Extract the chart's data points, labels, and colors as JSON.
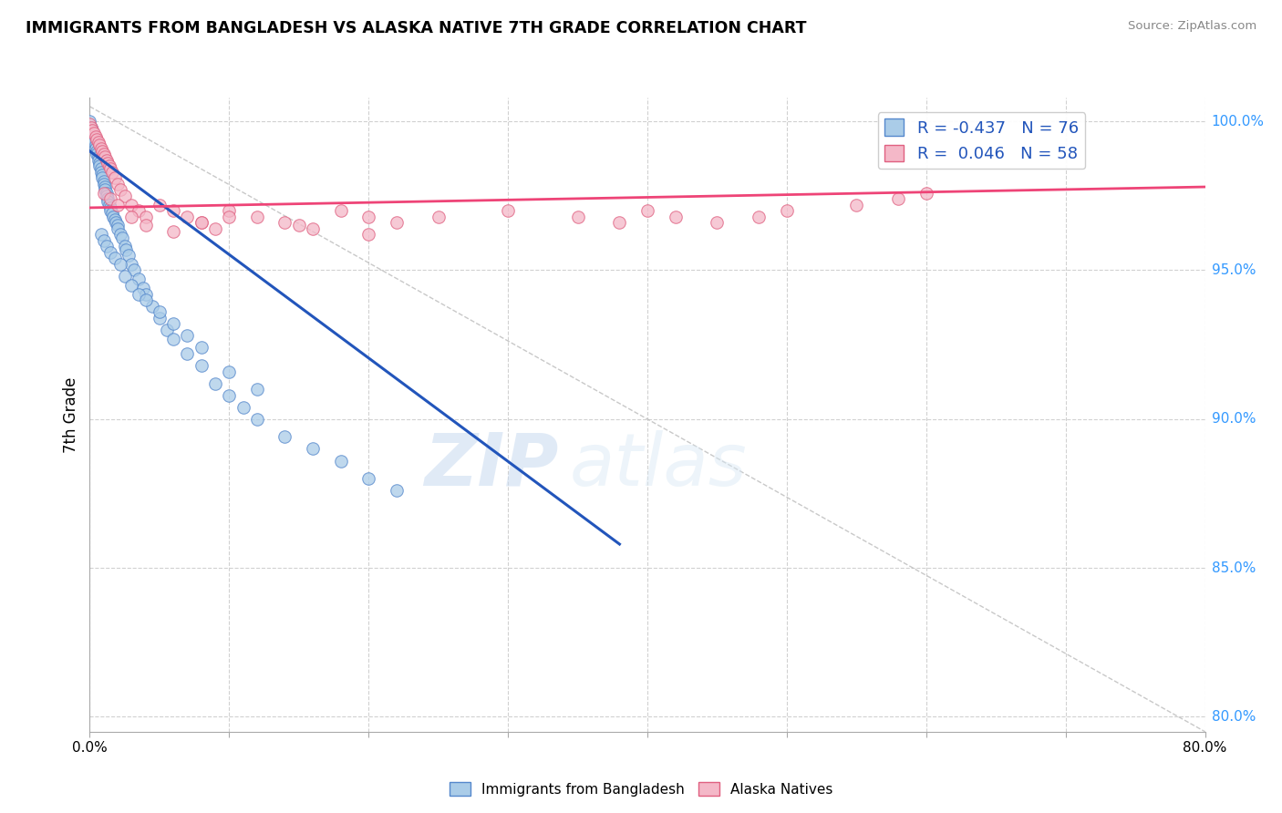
{
  "title": "IMMIGRANTS FROM BANGLADESH VS ALASKA NATIVE 7TH GRADE CORRELATION CHART",
  "source": "Source: ZipAtlas.com",
  "ylabel": "7th Grade",
  "xlim": [
    0.0,
    0.8
  ],
  "ylim": [
    0.795,
    1.008
  ],
  "x_ticks": [
    0.0,
    0.1,
    0.2,
    0.3,
    0.4,
    0.5,
    0.6,
    0.7,
    0.8
  ],
  "y_ticks": [
    0.8,
    0.85,
    0.9,
    0.95,
    1.0
  ],
  "blue_scatter_x": [
    0.0,
    0.001,
    0.002,
    0.002,
    0.003,
    0.003,
    0.004,
    0.004,
    0.005,
    0.005,
    0.006,
    0.006,
    0.007,
    0.007,
    0.008,
    0.008,
    0.009,
    0.009,
    0.01,
    0.01,
    0.011,
    0.011,
    0.012,
    0.012,
    0.013,
    0.013,
    0.014,
    0.015,
    0.015,
    0.016,
    0.017,
    0.018,
    0.019,
    0.02,
    0.02,
    0.022,
    0.023,
    0.025,
    0.026,
    0.028,
    0.03,
    0.032,
    0.035,
    0.038,
    0.04,
    0.045,
    0.05,
    0.055,
    0.06,
    0.07,
    0.08,
    0.09,
    0.1,
    0.11,
    0.12,
    0.14,
    0.16,
    0.18,
    0.2,
    0.22,
    0.008,
    0.01,
    0.012,
    0.015,
    0.018,
    0.022,
    0.025,
    0.03,
    0.035,
    0.04,
    0.05,
    0.06,
    0.07,
    0.08,
    0.1,
    0.12
  ],
  "blue_scatter_y": [
    1.0,
    0.998,
    0.997,
    0.995,
    0.994,
    0.993,
    0.992,
    0.991,
    0.99,
    0.989,
    0.988,
    0.987,
    0.986,
    0.985,
    0.984,
    0.983,
    0.982,
    0.981,
    0.98,
    0.979,
    0.978,
    0.977,
    0.976,
    0.975,
    0.974,
    0.973,
    0.972,
    0.971,
    0.97,
    0.969,
    0.968,
    0.967,
    0.966,
    0.965,
    0.964,
    0.962,
    0.961,
    0.958,
    0.957,
    0.955,
    0.952,
    0.95,
    0.947,
    0.944,
    0.942,
    0.938,
    0.934,
    0.93,
    0.927,
    0.922,
    0.918,
    0.912,
    0.908,
    0.904,
    0.9,
    0.894,
    0.89,
    0.886,
    0.88,
    0.876,
    0.962,
    0.96,
    0.958,
    0.956,
    0.954,
    0.952,
    0.948,
    0.945,
    0.942,
    0.94,
    0.936,
    0.932,
    0.928,
    0.924,
    0.916,
    0.91
  ],
  "pink_scatter_x": [
    0.0,
    0.001,
    0.002,
    0.003,
    0.004,
    0.005,
    0.006,
    0.007,
    0.008,
    0.009,
    0.01,
    0.011,
    0.012,
    0.013,
    0.014,
    0.015,
    0.016,
    0.018,
    0.02,
    0.022,
    0.025,
    0.03,
    0.035,
    0.04,
    0.05,
    0.06,
    0.07,
    0.08,
    0.09,
    0.1,
    0.12,
    0.14,
    0.16,
    0.18,
    0.2,
    0.22,
    0.25,
    0.3,
    0.35,
    0.38,
    0.4,
    0.42,
    0.45,
    0.48,
    0.5,
    0.55,
    0.58,
    0.6,
    0.01,
    0.015,
    0.02,
    0.03,
    0.04,
    0.06,
    0.08,
    0.1,
    0.15,
    0.2
  ],
  "pink_scatter_y": [
    0.999,
    0.998,
    0.997,
    0.996,
    0.995,
    0.994,
    0.993,
    0.992,
    0.991,
    0.99,
    0.989,
    0.988,
    0.987,
    0.986,
    0.985,
    0.984,
    0.983,
    0.981,
    0.979,
    0.977,
    0.975,
    0.972,
    0.97,
    0.968,
    0.972,
    0.97,
    0.968,
    0.966,
    0.964,
    0.97,
    0.968,
    0.966,
    0.964,
    0.97,
    0.968,
    0.966,
    0.968,
    0.97,
    0.968,
    0.966,
    0.97,
    0.968,
    0.966,
    0.968,
    0.97,
    0.972,
    0.974,
    0.976,
    0.976,
    0.974,
    0.972,
    0.968,
    0.965,
    0.963,
    0.966,
    0.968,
    0.965,
    0.962
  ],
  "blue_line_x": [
    0.0,
    0.38
  ],
  "blue_line_y": [
    0.99,
    0.858
  ],
  "pink_line_x": [
    0.0,
    0.8
  ],
  "pink_line_y": [
    0.971,
    0.978
  ],
  "diag_line_x": [
    0.0,
    0.8
  ],
  "diag_line_y": [
    1.005,
    0.795
  ],
  "watermark_zip": "ZIP",
  "watermark_atlas": "atlas",
  "bg_color": "#ffffff",
  "scatter_size": 95,
  "blue_color": "#aacce8",
  "blue_edge": "#5588cc",
  "pink_color": "#f4b8c8",
  "pink_edge": "#e06080",
  "legend_label_blue": "R = -0.437   N = 76",
  "legend_label_pink": "R =  0.046   N = 58",
  "bottom_label_blue": "Immigrants from Bangladesh",
  "bottom_label_pink": "Alaska Natives"
}
